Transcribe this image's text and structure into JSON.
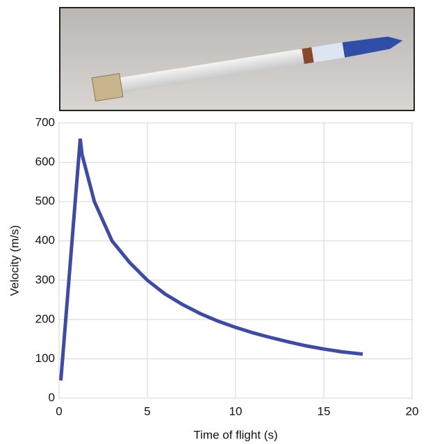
{
  "chart_data": {
    "type": "line",
    "xlabel": "Time of flight (s)",
    "ylabel": "Velocity (m/s)",
    "xlim": [
      0,
      20
    ],
    "xticks": [
      0,
      5,
      10,
      15,
      20
    ],
    "ylim": [
      0,
      700
    ],
    "yticks": [
      0,
      100,
      200,
      300,
      400,
      500,
      600,
      700
    ],
    "grid": true,
    "series": [
      {
        "color": "#3d4aa6",
        "x": [
          0.1,
          1.2,
          1.3,
          2,
          3,
          4,
          5,
          6,
          7,
          8,
          9,
          10,
          11,
          12,
          13,
          14,
          15,
          16,
          17.2
        ],
        "values": [
          45,
          660,
          620,
          500,
          400,
          345,
          300,
          265,
          238,
          215,
          196,
          180,
          166,
          154,
          143,
          133,
          125,
          118,
          112
        ]
      }
    ]
  }
}
